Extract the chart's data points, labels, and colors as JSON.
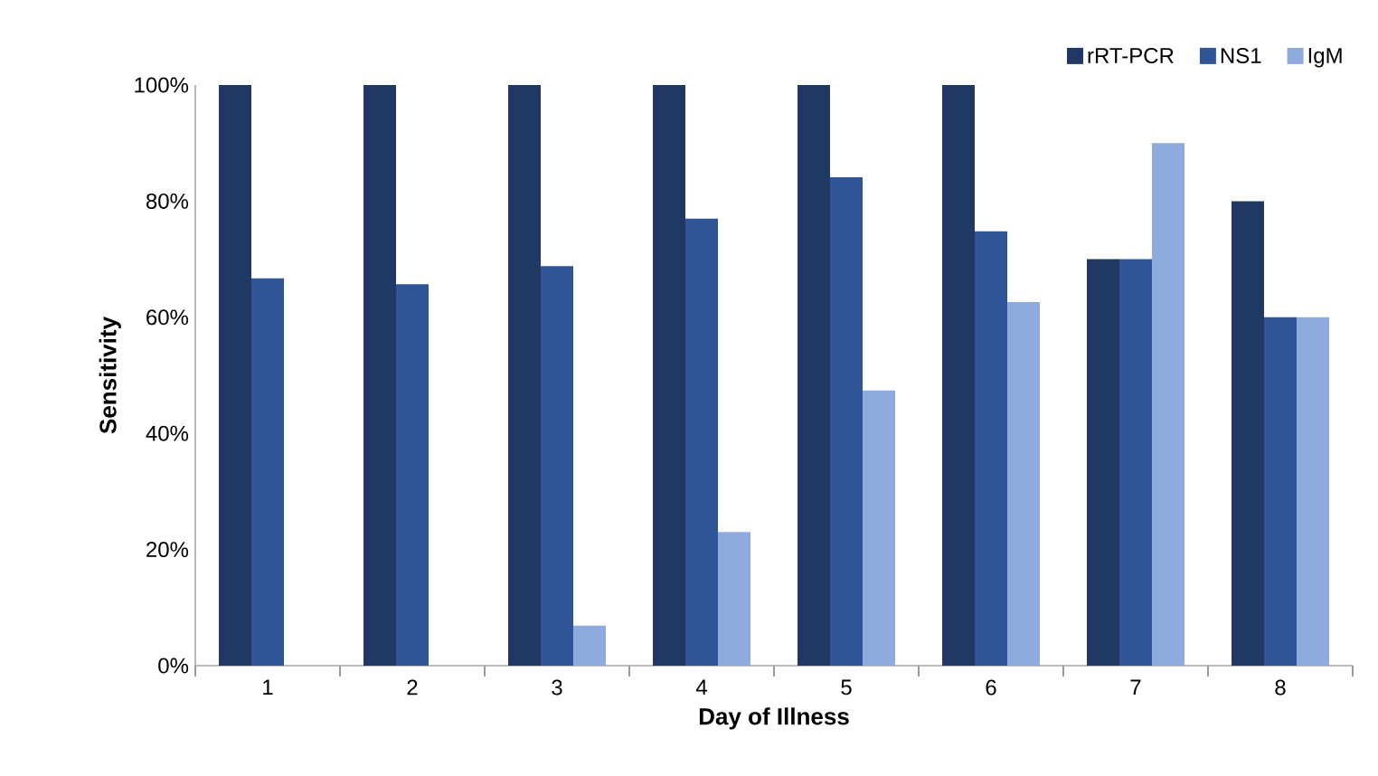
{
  "chart_data": {
    "type": "bar",
    "xlabel": "Day of Illness",
    "ylabel": "Sensitivity",
    "categories": [
      "1",
      "2",
      "3",
      "4",
      "5",
      "6",
      "7",
      "8"
    ],
    "series": [
      {
        "name": "rRT-PCR",
        "color": "#203864",
        "values": [
          100,
          100,
          100,
          100,
          100,
          100,
          70,
          80
        ]
      },
      {
        "name": "NS1",
        "color": "#2f5597",
        "values": [
          66.7,
          65.7,
          68.8,
          77,
          84.1,
          74.8,
          70,
          60
        ]
      },
      {
        "name": "IgM",
        "color": "#8faadc",
        "values": [
          0,
          0,
          6.9,
          23,
          47.4,
          62.6,
          90,
          60
        ]
      }
    ],
    "ylim": [
      0,
      100
    ],
    "yticks": [
      {
        "value": 0,
        "label": "0%"
      },
      {
        "value": 20,
        "label": "20%"
      },
      {
        "value": 40,
        "label": "40%"
      },
      {
        "value": 60,
        "label": "60%"
      },
      {
        "value": 80,
        "label": "80%"
      },
      {
        "value": 100,
        "label": "100%"
      }
    ],
    "grid": false,
    "legend": "top right"
  }
}
